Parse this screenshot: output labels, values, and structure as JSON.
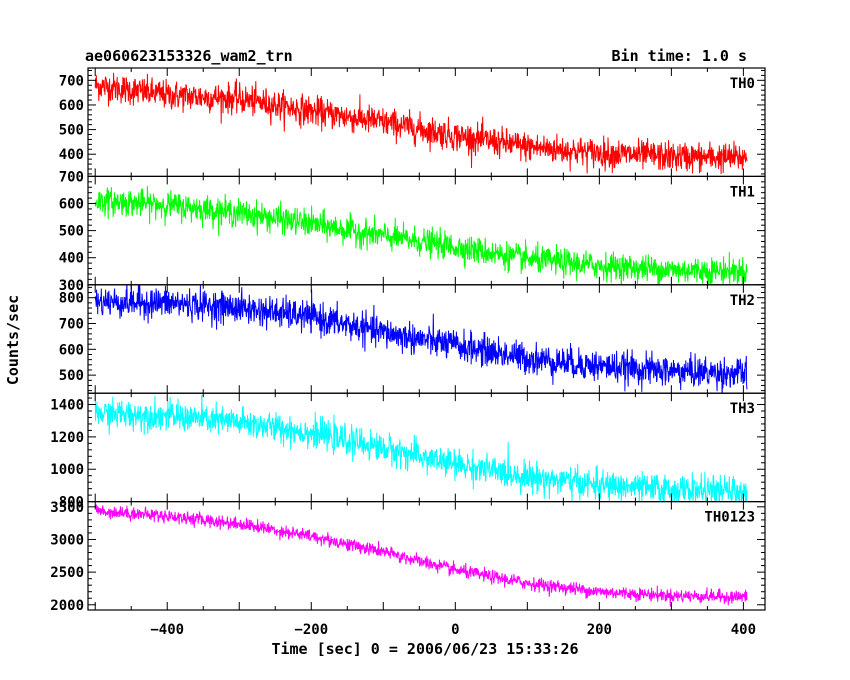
{
  "header": {
    "title": "ae060623153326_wam2_trn",
    "bin_time": "Bin time: 1.0 s"
  },
  "chart_data": {
    "type": "line",
    "title": "ae060623153326_wam2_trn",
    "subtitle": "Bin time: 1.0 s",
    "xlabel": "Time [sec] 0 = 2006/06/23 15:33:26",
    "ylabel": "Counts/sec",
    "xlim": [
      -510,
      430
    ],
    "x_ticks": [
      -400,
      -200,
      0,
      200,
      400
    ],
    "x_range_data": [
      -500,
      405
    ],
    "grid": false,
    "panels": [
      {
        "name": "TH0",
        "color": "#ff0000",
        "ylim": [
          310,
          750
        ],
        "y_ticks": [
          400,
          500,
          600,
          700
        ],
        "noise": 30,
        "trend": [
          [
            -500,
            680
          ],
          [
            -400,
            640
          ],
          [
            -300,
            625
          ],
          [
            -200,
            575
          ],
          [
            -100,
            530
          ],
          [
            0,
            475
          ],
          [
            100,
            430
          ],
          [
            200,
            405
          ],
          [
            300,
            390
          ],
          [
            405,
            385
          ]
        ]
      },
      {
        "name": "TH1",
        "color": "#00ff00",
        "ylim": [
          300,
          700
        ],
        "y_ticks": [
          300,
          400,
          500,
          600,
          700
        ],
        "noise": 25,
        "trend": [
          [
            -500,
            610
          ],
          [
            -400,
            595
          ],
          [
            -300,
            565
          ],
          [
            -200,
            525
          ],
          [
            -100,
            480
          ],
          [
            0,
            440
          ],
          [
            100,
            395
          ],
          [
            200,
            370
          ],
          [
            300,
            355
          ],
          [
            405,
            350
          ]
        ]
      },
      {
        "name": "TH2",
        "color": "#0000ff",
        "ylim": [
          430,
          850
        ],
        "y_ticks": [
          500,
          600,
          700,
          800
        ],
        "noise": 30,
        "trend": [
          [
            -500,
            785
          ],
          [
            -400,
            780
          ],
          [
            -300,
            760
          ],
          [
            -200,
            725
          ],
          [
            -100,
            665
          ],
          [
            0,
            615
          ],
          [
            100,
            565
          ],
          [
            200,
            535
          ],
          [
            300,
            515
          ],
          [
            405,
            505
          ]
        ]
      },
      {
        "name": "TH3",
        "color": "#00ffff",
        "ylim": [
          800,
          1470
        ],
        "y_ticks": [
          800,
          1000,
          1200,
          1400
        ],
        "noise": 45,
        "trend": [
          [
            -500,
            1345
          ],
          [
            -400,
            1330
          ],
          [
            -300,
            1290
          ],
          [
            -200,
            1225
          ],
          [
            -100,
            1130
          ],
          [
            0,
            1030
          ],
          [
            100,
            955
          ],
          [
            200,
            900
          ],
          [
            300,
            875
          ],
          [
            405,
            860
          ]
        ]
      },
      {
        "name": "TH0123",
        "color": "#ff00ff",
        "ylim": [
          1920,
          3580
        ],
        "y_ticks": [
          2000,
          2500,
          3000,
          3500
        ],
        "noise": 50,
        "trend": [
          [
            -500,
            3440
          ],
          [
            -400,
            3360
          ],
          [
            -300,
            3240
          ],
          [
            -200,
            3050
          ],
          [
            -100,
            2810
          ],
          [
            0,
            2530
          ],
          [
            100,
            2330
          ],
          [
            200,
            2200
          ],
          [
            300,
            2140
          ],
          [
            405,
            2120
          ]
        ]
      }
    ]
  }
}
